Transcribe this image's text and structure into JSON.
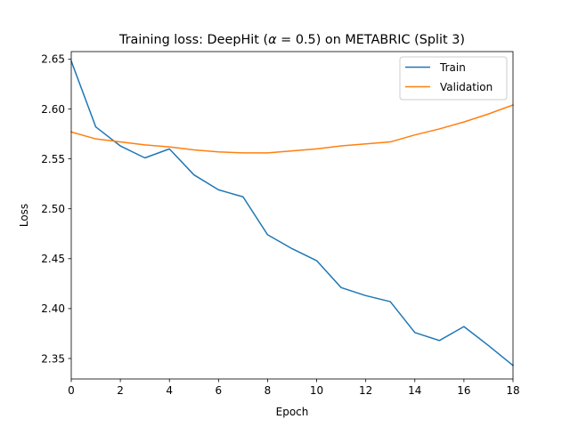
{
  "chart_data": {
    "type": "line",
    "title_prefix": "Training loss: DeepHit (",
    "title_alpha": "α",
    "title_eq": " = 0.5) on METABRIC (Split 3)",
    "xlabel": "Epoch",
    "ylabel": "Loss",
    "xlim": [
      0,
      18
    ],
    "ylim": [
      2.3295,
      2.6575
    ],
    "xticks": [
      0,
      2,
      4,
      6,
      8,
      10,
      12,
      14,
      16,
      18
    ],
    "xtick_labels": [
      "0",
      "2",
      "4",
      "6",
      "8",
      "10",
      "12",
      "14",
      "16",
      "18"
    ],
    "yticks": [
      2.35,
      2.4,
      2.45,
      2.5,
      2.55,
      2.6,
      2.65
    ],
    "ytick_labels": [
      "2.35",
      "2.40",
      "2.45",
      "2.50",
      "2.55",
      "2.60",
      "2.65"
    ],
    "grid": false,
    "legend_position": "upper-right",
    "x": [
      0,
      1,
      2,
      3,
      4,
      5,
      6,
      7,
      8,
      9,
      10,
      11,
      12,
      13,
      14,
      15,
      16,
      17,
      18
    ],
    "series": [
      {
        "name": "Train",
        "color": "#1f77b4",
        "values": [
          2.648,
          2.582,
          2.563,
          2.551,
          2.56,
          2.534,
          2.519,
          2.512,
          2.474,
          2.46,
          2.448,
          2.421,
          2.413,
          2.407,
          2.376,
          2.368,
          2.382,
          2.363,
          2.343
        ]
      },
      {
        "name": "Validation",
        "color": "#ff7f0e",
        "values": [
          2.577,
          2.57,
          2.567,
          2.564,
          2.562,
          2.559,
          2.557,
          2.556,
          2.556,
          2.558,
          2.56,
          2.563,
          2.565,
          2.567,
          2.574,
          2.58,
          2.587,
          2.595,
          2.604
        ]
      }
    ]
  }
}
